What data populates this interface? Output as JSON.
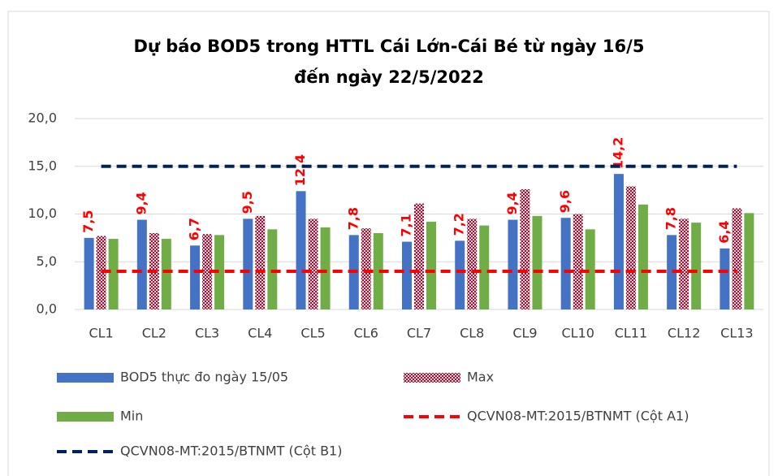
{
  "chart_data": {
    "type": "bar",
    "title": [
      "Dự báo BOD5 trong HTTL Cái Lớn-Cái Bé từ ngày 16/5",
      "đến ngày 22/5/2022"
    ],
    "categories": [
      "CL1",
      "CL2",
      "CL3",
      "CL4",
      "CL5",
      "CL6",
      "CL7",
      "CL8",
      "CL9",
      "CL10",
      "CL11",
      "CL12",
      "CL13"
    ],
    "series": [
      {
        "name": "BOD5 thực đo ngày 15/05",
        "type": "bar",
        "color": "#4472c4",
        "values": [
          7.5,
          9.4,
          6.7,
          9.5,
          12.4,
          7.8,
          7.1,
          7.2,
          9.4,
          9.6,
          14.2,
          7.8,
          6.4
        ],
        "value_labels": [
          "7,5",
          "9,4",
          "6,7",
          "9,5",
          "12,4",
          "7,8",
          "7,1",
          "7,2",
          "9,4",
          "9,6",
          "14,2",
          "7,8",
          "6,4"
        ],
        "label_color": "#ff0000"
      },
      {
        "name": "Max",
        "type": "bar",
        "color": "#8b1a3a",
        "values": [
          7.7,
          8.0,
          7.9,
          9.8,
          9.5,
          8.5,
          11.1,
          9.5,
          12.6,
          10.0,
          12.9,
          9.5,
          10.6
        ]
      },
      {
        "name": "Min",
        "type": "bar",
        "color": "#70ad47",
        "values": [
          7.4,
          7.4,
          7.8,
          8.4,
          8.6,
          8.0,
          9.2,
          8.8,
          9.8,
          8.4,
          11.0,
          9.1,
          10.1
        ]
      },
      {
        "name": "QCVN08-MT:2015/BTNMT (Cột A1)",
        "type": "line",
        "color": "#ff0000",
        "values": [
          4,
          4,
          4,
          4,
          4,
          4,
          4,
          4,
          4,
          4,
          4,
          4,
          4
        ]
      },
      {
        "name": "QCVN08-MT:2015/BTNMT (Cột B1)",
        "type": "line",
        "color": "#002060",
        "values": [
          15,
          15,
          15,
          15,
          15,
          15,
          15,
          15,
          15,
          15,
          15,
          15,
          15
        ]
      }
    ],
    "ylim": [
      0,
      20
    ],
    "yticks": [
      {
        "value": 0,
        "label": "0,0"
      },
      {
        "value": 5,
        "label": "5,0"
      },
      {
        "value": 10,
        "label": "10,0"
      },
      {
        "value": 15,
        "label": "15,0"
      },
      {
        "value": 20,
        "label": "20,0"
      }
    ],
    "grid": true
  }
}
